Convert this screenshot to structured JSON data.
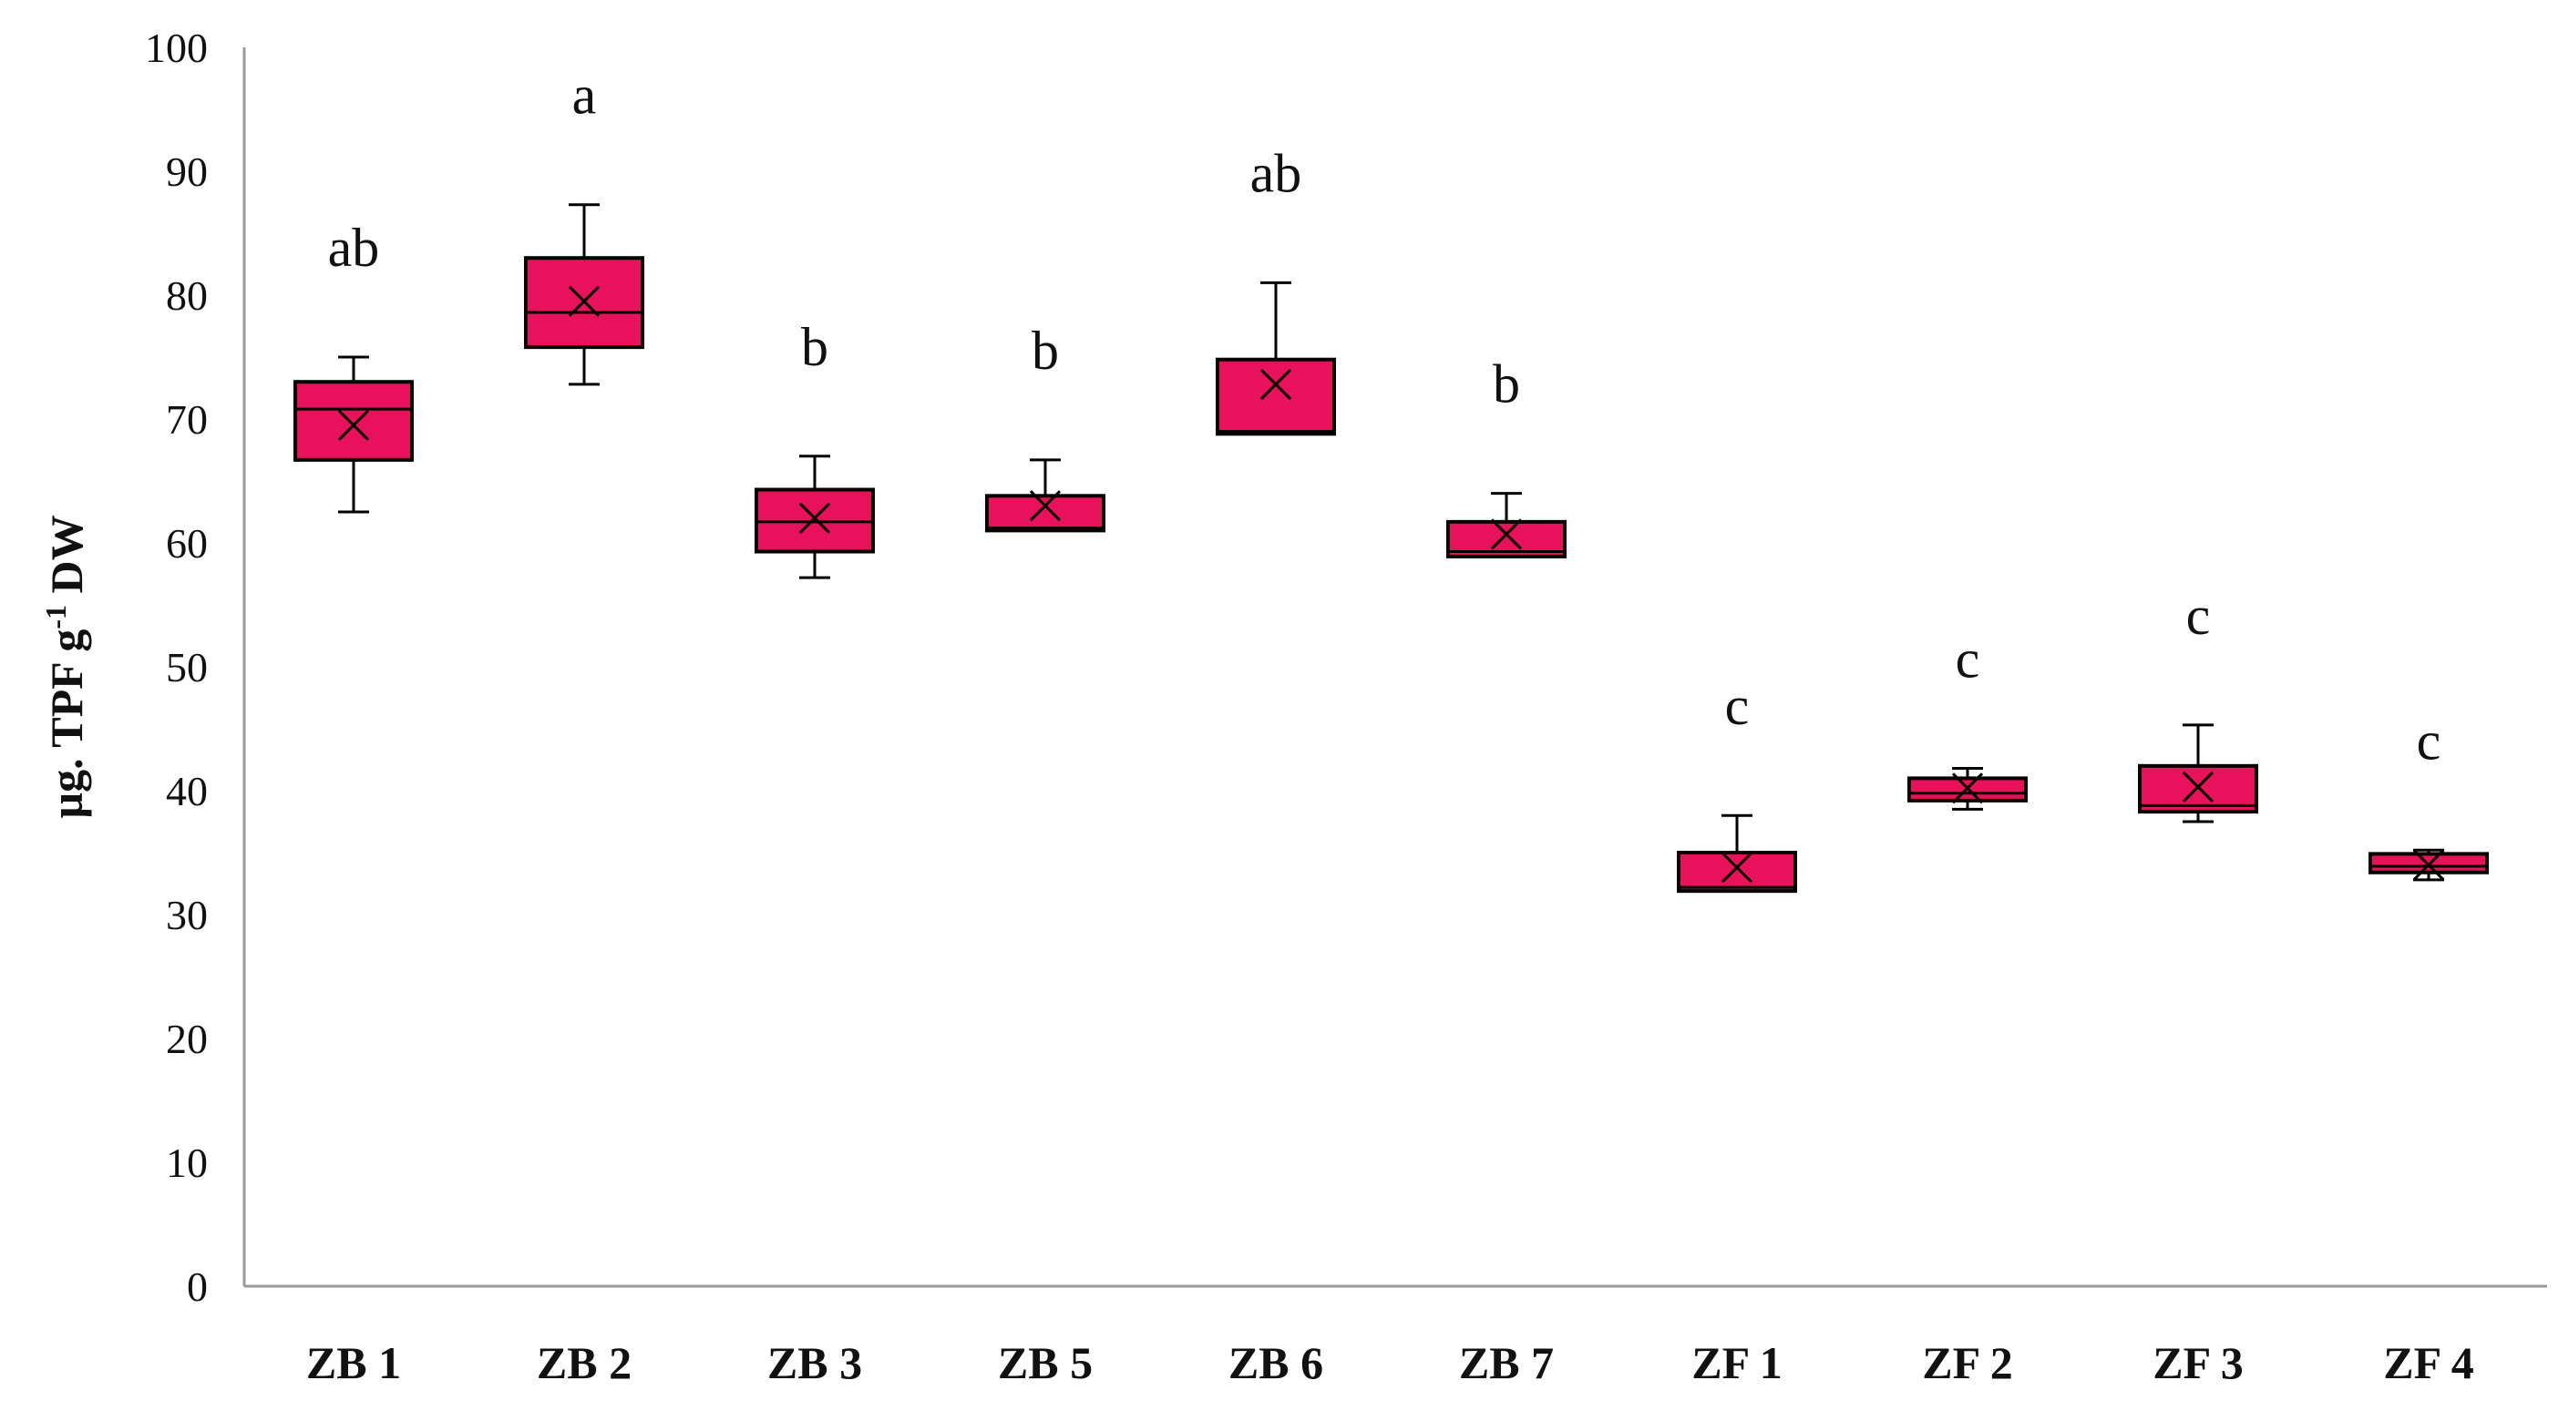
{
  "chart_data": {
    "type": "box",
    "ylabel": "µg. TPF g-1 DW",
    "ylabel_parts": {
      "main": "µg. TPF g",
      "sup": "-1",
      "tail": " DW"
    },
    "ylim": [
      0,
      100
    ],
    "yticks": [
      0,
      10,
      20,
      30,
      40,
      50,
      60,
      70,
      80,
      90,
      100
    ],
    "grid": false,
    "legend": "none",
    "colors": {
      "box_fill": "#e8125c",
      "stroke": "#000000"
    },
    "categories": [
      "ZB 1",
      "ZB 2",
      "ZB 3",
      "ZB 5",
      "ZB 6",
      "ZB 7",
      "ZF 1",
      "ZF 2",
      "ZF 3",
      "ZF 4"
    ],
    "boxes": [
      {
        "category": "ZB 1",
        "min": 62.5,
        "q1": 66.7,
        "median": 70.8,
        "q3": 73.0,
        "max": 75.0,
        "mean": 69.5,
        "letter": "ab"
      },
      {
        "category": "ZB 2",
        "min": 72.8,
        "q1": 75.8,
        "median": 78.6,
        "q3": 83.0,
        "max": 87.3,
        "mean": 79.5,
        "letter": "a"
      },
      {
        "category": "ZB 3",
        "min": 57.2,
        "q1": 59.3,
        "median": 61.7,
        "q3": 64.3,
        "max": 67.0,
        "mean": 62.0,
        "letter": "b"
      },
      {
        "category": "ZB 5",
        "min": 61.0,
        "q1": 61.0,
        "median": 61.2,
        "q3": 63.8,
        "max": 66.7,
        "mean": 63.0,
        "letter": "b"
      },
      {
        "category": "ZB 6",
        "min": 68.8,
        "q1": 68.8,
        "median": 69.0,
        "q3": 74.8,
        "max": 81.0,
        "mean": 72.8,
        "letter": "ab"
      },
      {
        "category": "ZB 7",
        "min": 58.9,
        "q1": 58.9,
        "median": 59.3,
        "q3": 61.7,
        "max": 64.0,
        "mean": 60.7,
        "letter": "b"
      },
      {
        "category": "ZF 1",
        "min": 31.9,
        "q1": 31.9,
        "median": 32.2,
        "q3": 35.0,
        "max": 38.0,
        "mean": 33.8,
        "letter": "c"
      },
      {
        "category": "ZF 2",
        "min": 38.5,
        "q1": 39.2,
        "median": 39.8,
        "q3": 41.0,
        "max": 41.8,
        "mean": 40.2,
        "letter": "c"
      },
      {
        "category": "ZF 3",
        "min": 37.5,
        "q1": 38.3,
        "median": 38.8,
        "q3": 42.0,
        "max": 45.3,
        "mean": 40.3,
        "letter": "c"
      },
      {
        "category": "ZF 4",
        "min": 32.8,
        "q1": 33.4,
        "median": 33.9,
        "q3": 34.9,
        "max": 35.2,
        "mean": 34.0,
        "letter": "c"
      }
    ]
  }
}
